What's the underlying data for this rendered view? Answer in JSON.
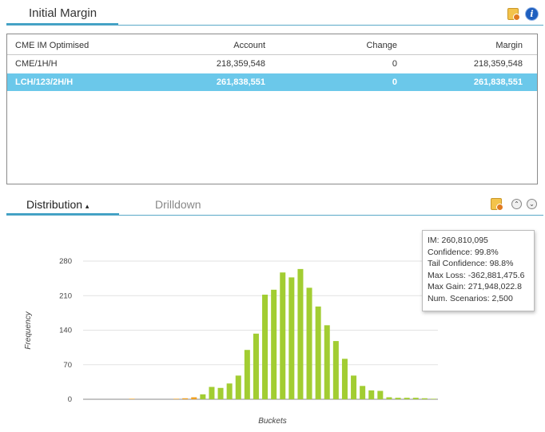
{
  "top_section": {
    "title": "Initial Margin"
  },
  "table": {
    "headers": [
      "CME IM Optimised",
      "Account",
      "Change",
      "Margin"
    ],
    "rows": [
      [
        "CME/1H/H",
        "218,359,548",
        "0",
        "218,359,548"
      ],
      [
        "LCH/123/2H/H",
        "261,838,551",
        "0",
        "261,838,551"
      ]
    ],
    "selected_row": 1
  },
  "tabs": [
    {
      "label": "Distribution",
      "active": true,
      "indicator": "▴"
    },
    {
      "label": "Drilldown",
      "active": false
    }
  ],
  "icons": {
    "export": "export-icon",
    "info": "info-icon",
    "collapse": "collapse-up-icon",
    "expand": "expand-down-icon"
  },
  "colors": {
    "accent": "#3d9fc4",
    "selected_row": "#6bc8ea",
    "bar": "#a2cd32",
    "bar_orange": "#f0a020"
  },
  "chart_data": {
    "type": "bar",
    "xlabel": "Buckets",
    "ylabel": "Frequency",
    "ylim": [
      0,
      280
    ],
    "yticks": [
      0,
      70,
      140,
      210,
      280
    ],
    "values": [
      0,
      0,
      0,
      0,
      0,
      1,
      0,
      0,
      0,
      0,
      1,
      2,
      4,
      10,
      25,
      23,
      32,
      48,
      100,
      133,
      212,
      222,
      257,
      247,
      264,
      226,
      188,
      150,
      118,
      82,
      48,
      27,
      18,
      17,
      4,
      3,
      3,
      3,
      2,
      1
    ],
    "orange_indices": [
      5,
      10,
      11,
      12
    ]
  },
  "tooltip": {
    "lines": [
      "IM: 260,810,095",
      "Confidence: 99.8%",
      "Tail Confidence: 98.8%",
      "Max Loss: -362,881,475.6",
      "Max Gain: 271,948,022.8",
      "Num. Scenarios: 2,500"
    ]
  }
}
